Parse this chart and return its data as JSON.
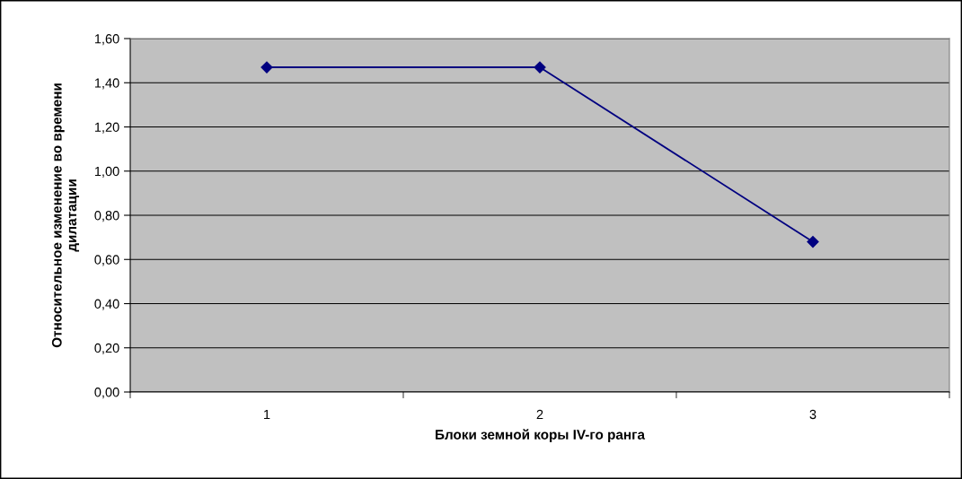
{
  "chart_data": {
    "type": "line",
    "xlabel": "Блоки земной коры IV-го ранга",
    "ylabel": "Относительное изменение во времени\nдилатации",
    "categories": [
      "1",
      "2",
      "3"
    ],
    "series": [
      {
        "color": "#000080",
        "values": [
          1.47,
          1.47,
          0.68
        ]
      }
    ],
    "ylim": [
      0,
      1.6
    ],
    "yticks": [
      {
        "value": 0,
        "label": "0,00"
      },
      {
        "value": 0.2,
        "label": "0,20"
      },
      {
        "value": 0.4,
        "label": "0,40"
      },
      {
        "value": 0.6,
        "label": "0,60"
      },
      {
        "value": 0.8,
        "label": "0,80"
      },
      {
        "value": 1.0,
        "label": "1,00"
      },
      {
        "value": 1.2,
        "label": "1,20"
      },
      {
        "value": 1.4,
        "label": "1,40"
      },
      {
        "value": 1.6,
        "label": "1,60"
      }
    ],
    "grid": "y",
    "marker": "diamond",
    "line_style": "solid"
  }
}
